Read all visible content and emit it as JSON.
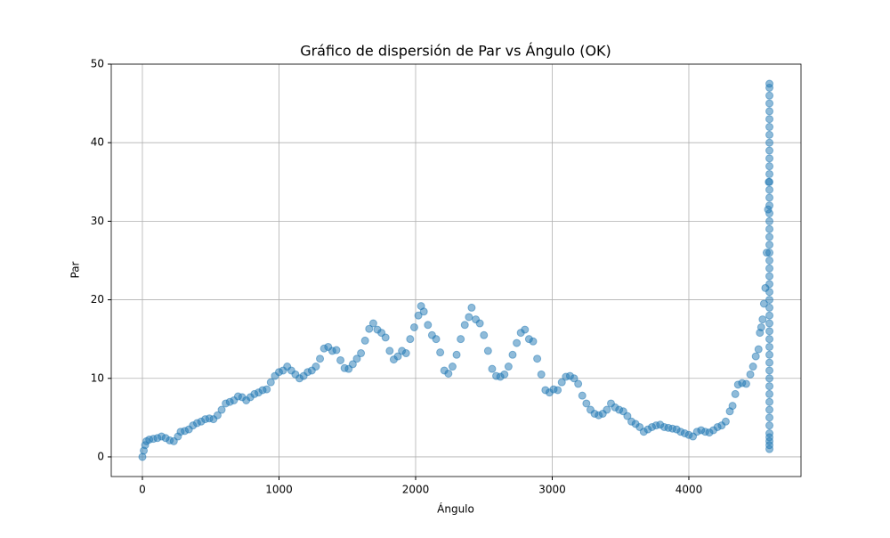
{
  "chart_data": {
    "type": "scatter",
    "title": "Gráfico de dispersión de Par vs Ángulo (OK)",
    "x_label": "Ángulo",
    "y_label": "Par",
    "color": "#1f77b4",
    "grid": true,
    "xlim": [
      -228,
      4821
    ],
    "ylim": [
      -2.5,
      50
    ],
    "xticks": [
      0,
      1000,
      2000,
      3000,
      4000
    ],
    "yticks": [
      0,
      10,
      20,
      30,
      40,
      50
    ],
    "x": [
      0,
      10,
      20,
      30,
      50,
      80,
      110,
      140,
      170,
      200,
      230,
      260,
      280,
      310,
      340,
      370,
      400,
      430,
      460,
      490,
      520,
      550,
      580,
      610,
      640,
      670,
      700,
      730,
      760,
      790,
      820,
      850,
      880,
      910,
      940,
      970,
      1000,
      1030,
      1060,
      1090,
      1120,
      1150,
      1180,
      1210,
      1240,
      1270,
      1300,
      1330,
      1360,
      1390,
      1420,
      1450,
      1480,
      1510,
      1540,
      1570,
      1600,
      1630,
      1660,
      1690,
      1720,
      1750,
      1780,
      1810,
      1840,
      1870,
      1900,
      1930,
      1960,
      1990,
      2020,
      2040,
      2060,
      2090,
      2120,
      2150,
      2180,
      2210,
      2240,
      2270,
      2300,
      2330,
      2360,
      2390,
      2410,
      2440,
      2470,
      2500,
      2530,
      2560,
      2590,
      2620,
      2650,
      2680,
      2710,
      2740,
      2770,
      2800,
      2830,
      2860,
      2890,
      2920,
      2950,
      2980,
      3010,
      3040,
      3070,
      3100,
      3130,
      3160,
      3190,
      3220,
      3250,
      3280,
      3310,
      3340,
      3370,
      3400,
      3430,
      3460,
      3490,
      3520,
      3550,
      3580,
      3610,
      3640,
      3670,
      3700,
      3730,
      3760,
      3790,
      3820,
      3850,
      3880,
      3910,
      3940,
      3970,
      4000,
      4030,
      4060,
      4090,
      4120,
      4150,
      4180,
      4210,
      4240,
      4270,
      4300,
      4320,
      4340,
      4360,
      4390,
      4420,
      4450,
      4470,
      4490,
      4510,
      4520,
      4530,
      4540,
      4550,
      4560,
      4570,
      4580,
      4585,
      4590,
      4590,
      4590,
      4590,
      4590,
      4590,
      4590,
      4590,
      4590,
      4590,
      4590,
      4590,
      4590,
      4590,
      4590,
      4590,
      4590,
      4590,
      4590,
      4590,
      4590,
      4590,
      4590,
      4590,
      4590,
      4590,
      4590,
      4590,
      4590,
      4590,
      4590,
      4590,
      4590,
      4590,
      4590,
      4590,
      4590,
      4590,
      4590,
      4590,
      4590,
      4590,
      4590,
      4590,
      4590,
      4590,
      4590,
      4590,
      4590,
      4590
    ],
    "values": [
      0,
      0.8,
      1.5,
      2,
      2.2,
      2.3,
      2.4,
      2.6,
      2.4,
      2.1,
      2,
      2.6,
      3.2,
      3.3,
      3.5,
      4,
      4.3,
      4.5,
      4.8,
      4.9,
      4.8,
      5.3,
      6,
      6.8,
      7,
      7.2,
      7.7,
      7.6,
      7.2,
      7.6,
      8,
      8.2,
      8.5,
      8.6,
      9.5,
      10.3,
      10.8,
      11,
      11.5,
      11,
      10.5,
      10,
      10.3,
      10.8,
      11,
      11.5,
      12.5,
      13.8,
      14,
      13.5,
      13.6,
      12.3,
      11.3,
      11.2,
      11.8,
      12.5,
      13.2,
      14.8,
      16.3,
      17,
      16.2,
      15.8,
      15.2,
      13.5,
      12.4,
      12.8,
      13.5,
      13.2,
      15,
      16.5,
      18,
      19.2,
      18.5,
      16.8,
      15.5,
      15,
      13.3,
      11,
      10.6,
      11.5,
      13,
      15,
      16.8,
      17.8,
      19,
      17.5,
      17,
      15.5,
      13.5,
      11.2,
      10.3,
      10.2,
      10.5,
      11.5,
      13,
      14.5,
      15.8,
      16.2,
      15,
      14.7,
      12.5,
      10.5,
      8.5,
      8.2,
      8.6,
      8.5,
      9.5,
      10.2,
      10.3,
      10,
      9.3,
      7.8,
      6.8,
      6,
      5.5,
      5.3,
      5.5,
      6,
      6.8,
      6.3,
      6,
      5.8,
      5.2,
      4.5,
      4.2,
      3.8,
      3.2,
      3.5,
      3.8,
      4,
      4.1,
      3.8,
      3.7,
      3.6,
      3.5,
      3.2,
      3,
      2.8,
      2.6,
      3.2,
      3.4,
      3.2,
      3.1,
      3.4,
      3.8,
      4,
      4.5,
      5.8,
      6.5,
      8,
      9.2,
      9.4,
      9.3,
      10.5,
      11.5,
      12.8,
      13.7,
      15.8,
      16.5,
      17.5,
      19.5,
      21.5,
      26,
      31.5,
      35,
      1,
      1.5,
      2,
      2.5,
      3,
      4,
      5,
      6,
      7,
      8,
      9,
      10,
      11,
      12,
      13,
      14,
      15,
      16,
      17,
      18,
      19,
      20,
      21,
      22,
      23,
      24,
      25,
      26,
      27,
      28,
      29,
      30,
      31,
      32,
      33,
      34,
      35,
      36,
      37,
      38,
      39,
      40,
      41,
      42,
      43,
      44,
      45,
      46,
      47,
      47.5
    ]
  }
}
